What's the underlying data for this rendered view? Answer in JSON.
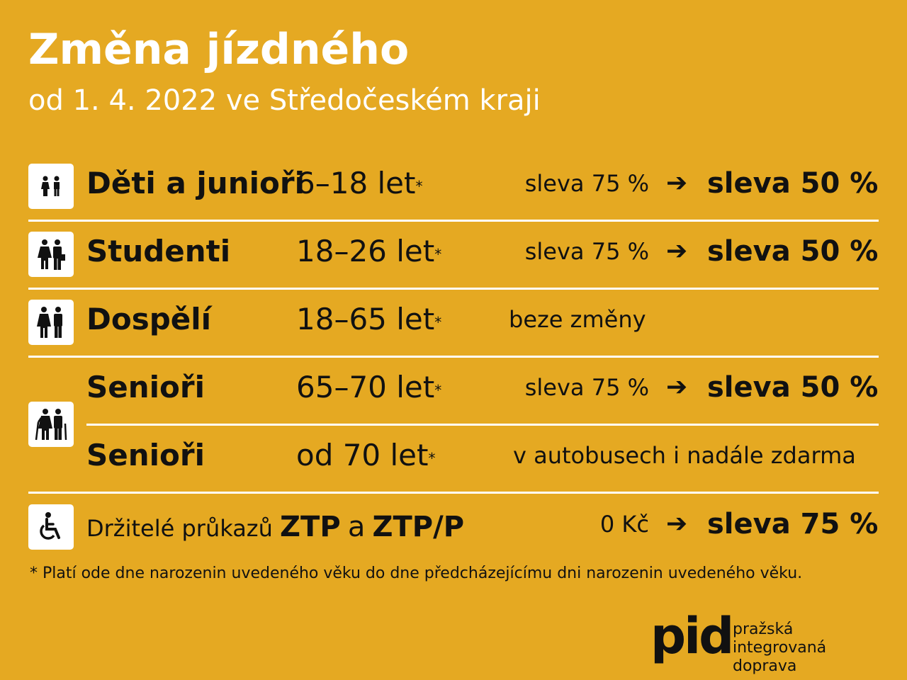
{
  "title": "Změna jízdného",
  "subtitle": "od 1. 4. 2022 ve Středočeském kraji",
  "arrow": "➔",
  "rows": [
    {
      "name": "Děti a junioři",
      "age": "6–18 let",
      "star": "*",
      "old": "sleva 75 %",
      "new": "sleva 50 %"
    },
    {
      "name": "Studenti",
      "age": "18–26 let",
      "star": "*",
      "old": "sleva 75 %",
      "new": "sleva 50 %"
    },
    {
      "name": "Dospělí",
      "age": "18–65 let",
      "star": "*",
      "note": "beze změny"
    },
    {
      "name": "Senioři",
      "age": "65–70 let",
      "star": "*",
      "old": "sleva 75 %",
      "new": "sleva 50 %"
    },
    {
      "name": "Senioři",
      "age": "od 70 let",
      "star": "*",
      "note": "v autobusech i nadále zdarma"
    }
  ],
  "ztp": {
    "prefix": "Držitelé průkazů",
    "bold1": "ZTP",
    "mid": "a",
    "bold2": "ZTP/P",
    "old": "0 Kč",
    "new": "sleva 75 %"
  },
  "footnote": "*  Platí ode dne narozenin uvedeného věku do dne předcházejícímu dni narozenin uvedeného věku.",
  "logo": {
    "mark": "pid",
    "line1": "pražská integrovaná",
    "line2": "doprava"
  },
  "colors": {
    "background": "#e5a922",
    "text": "#111111",
    "white": "#ffffff"
  }
}
